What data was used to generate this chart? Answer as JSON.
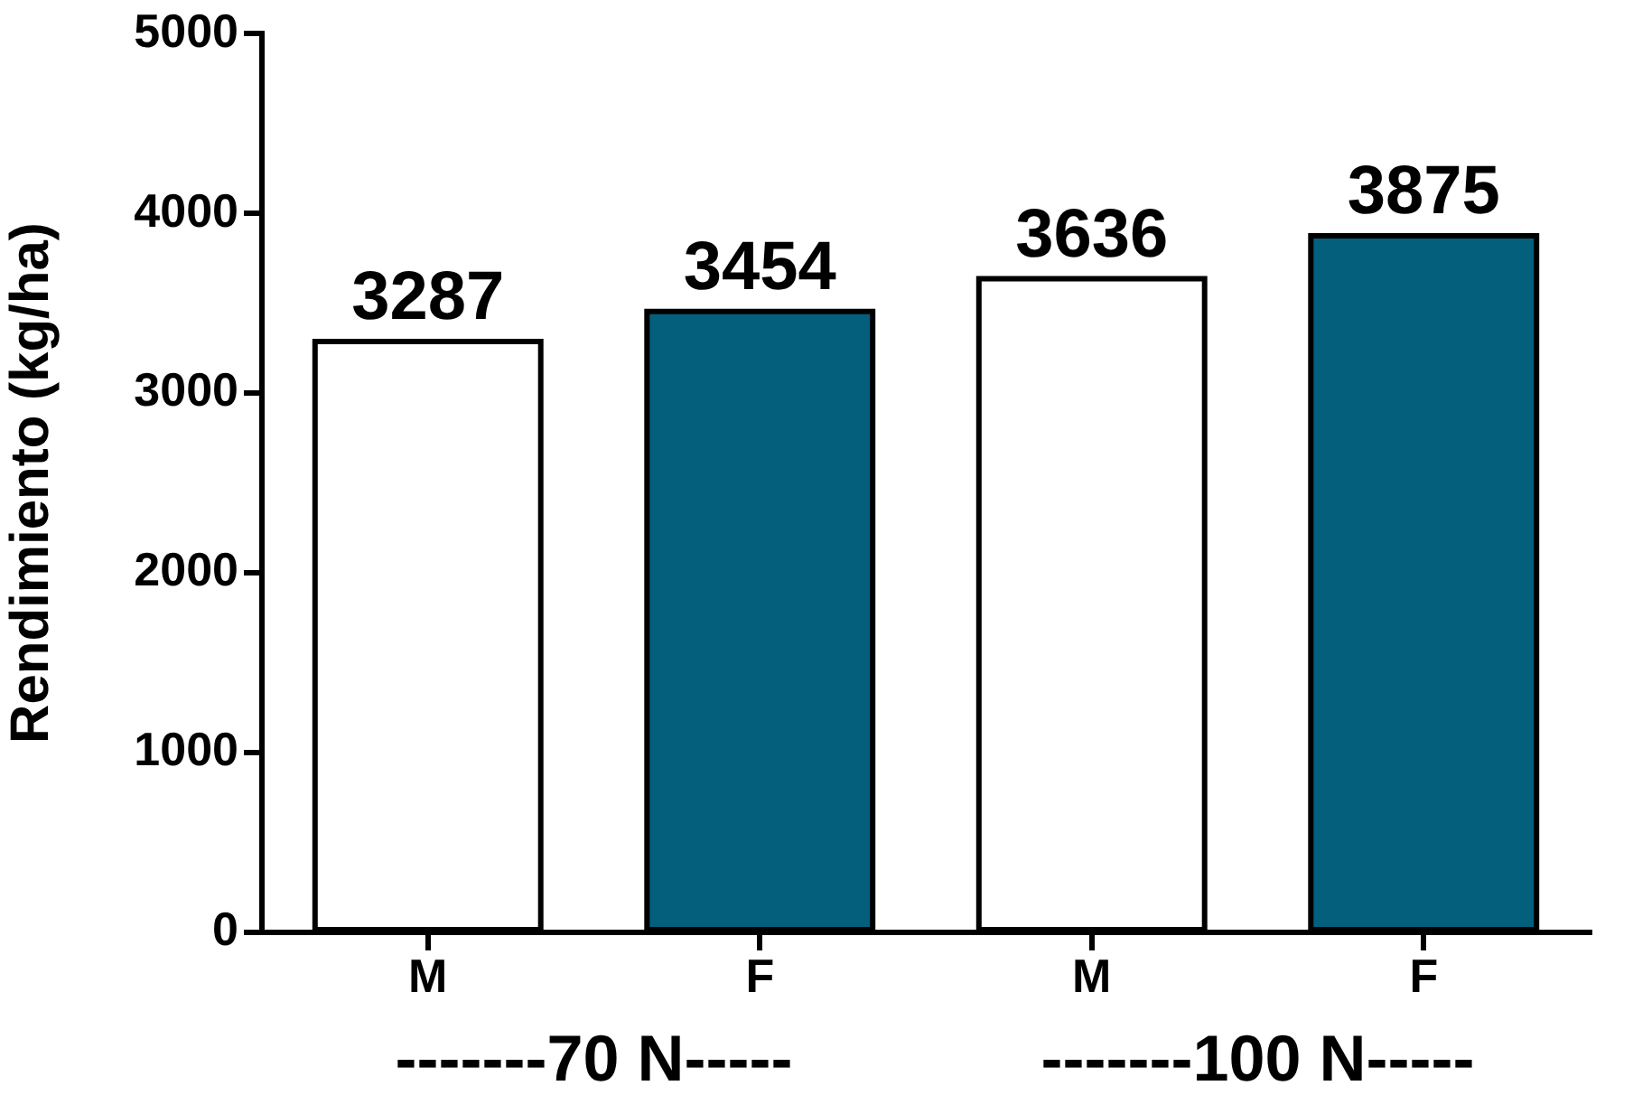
{
  "chart_data": {
    "type": "bar",
    "ylabel": "Rendimiento (kg/ha)",
    "categories": [
      "M",
      "F",
      "M",
      "F"
    ],
    "values": [
      3287,
      3454,
      3636,
      3875
    ],
    "colors": [
      "#ffffff",
      "#045f7c",
      "#ffffff",
      "#045f7c"
    ],
    "ylim": [
      0,
      5000
    ],
    "yticks": [
      0,
      1000,
      2000,
      3000,
      4000,
      5000
    ],
    "data_labels": true,
    "grid": false,
    "legend": false,
    "annotations": [
      "-------70 N-----",
      "-------100 N-----"
    ]
  }
}
